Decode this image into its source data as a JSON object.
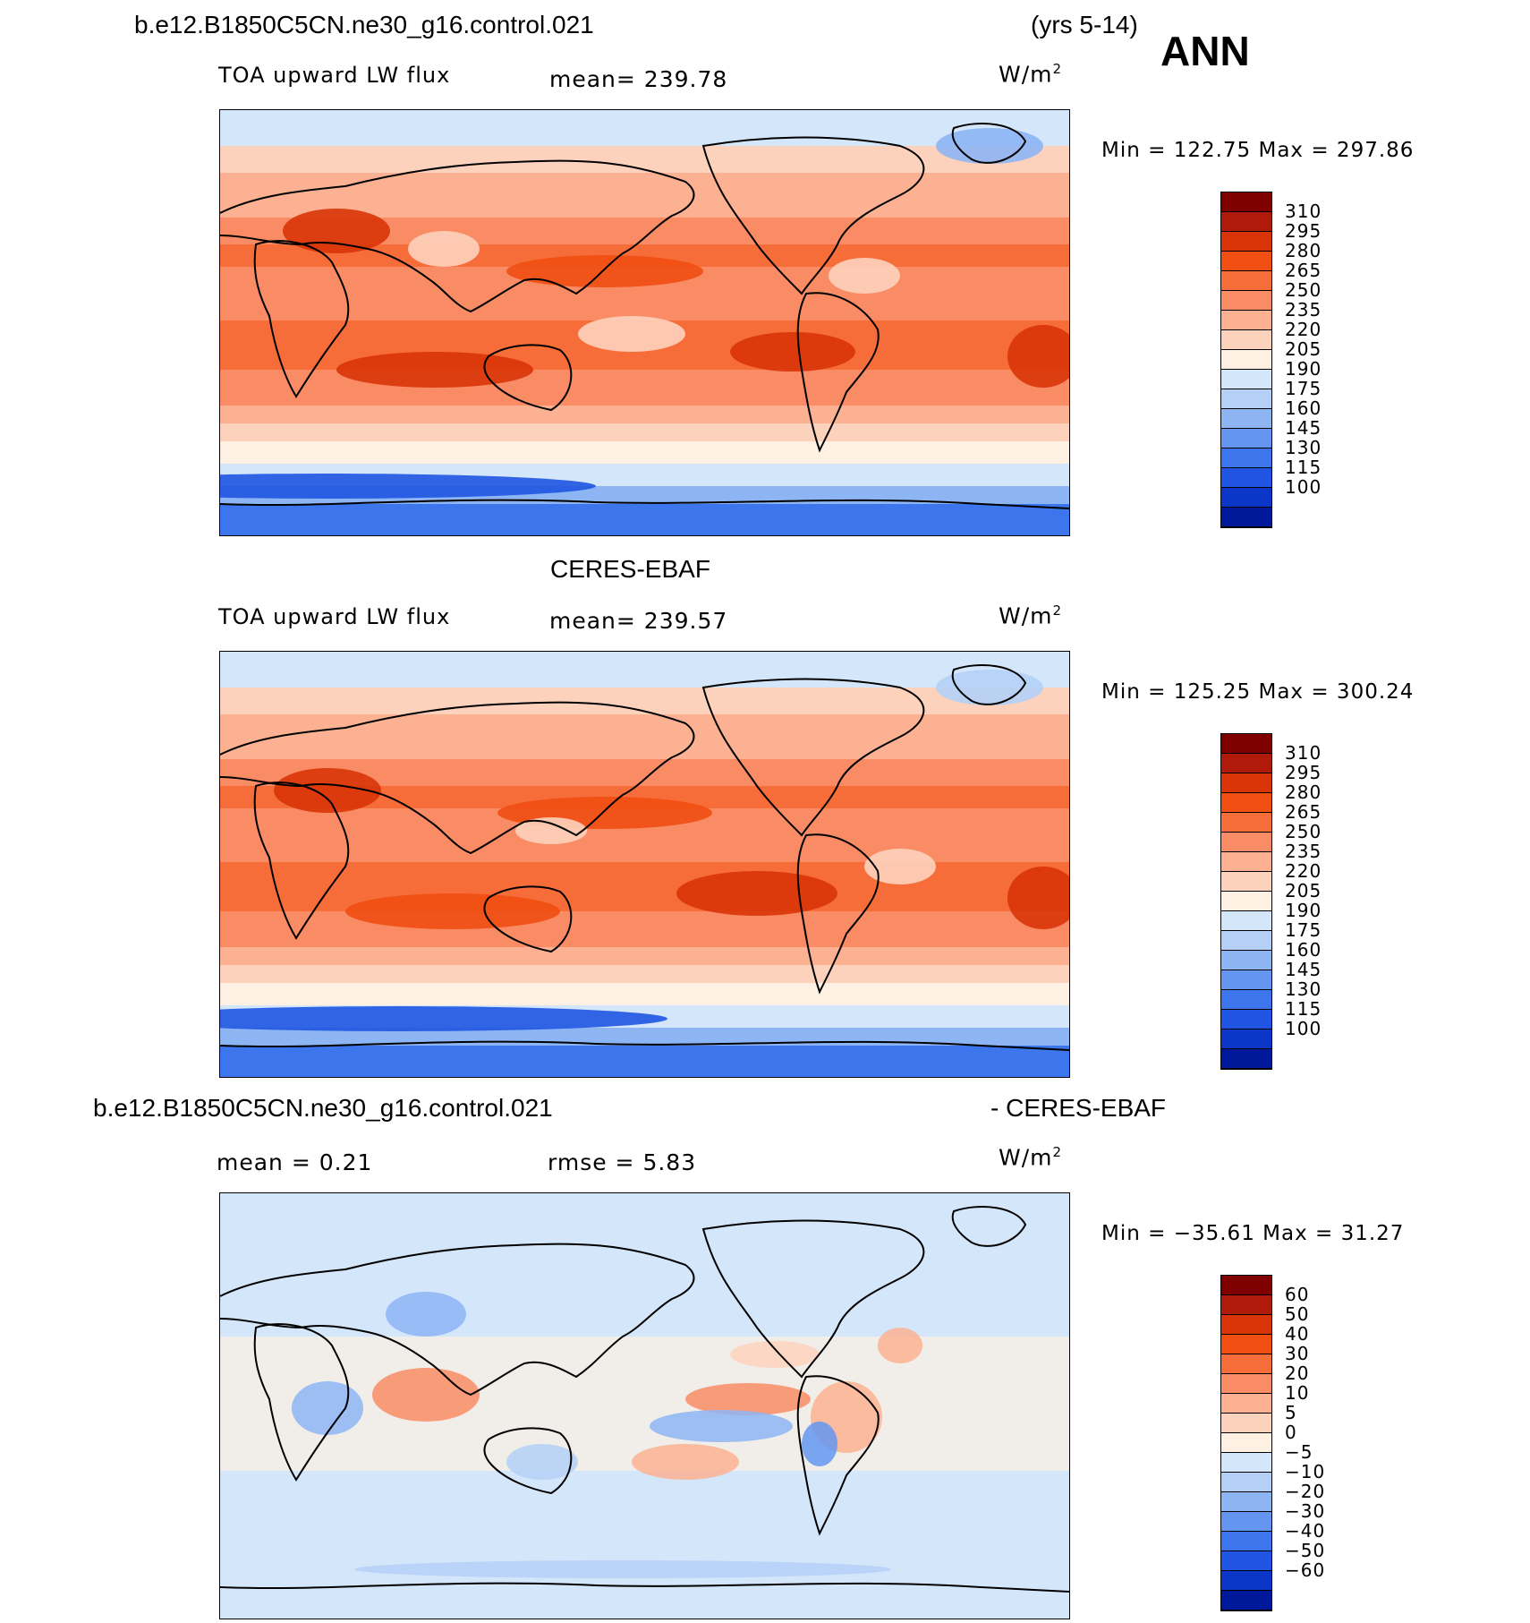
{
  "header": {
    "case_name": "b.e12.B1850C5CN.ne30_g16.control.021",
    "years": "(yrs 5-14)",
    "season": "ANN"
  },
  "panels": [
    {
      "id": "model",
      "title": "",
      "label": "TOA upward LW flux",
      "stat1": "mean=  239.78",
      "stat2": "",
      "units_base": "W/m",
      "units_exp": "2",
      "minmax": "Min  =  122.75  Max  =  297.86",
      "colorbar": {
        "labels": [
          "310",
          "295",
          "280",
          "265",
          "250",
          "235",
          "220",
          "205",
          "190",
          "175",
          "160",
          "145",
          "130",
          "115",
          "100"
        ],
        "colors": [
          "#800000",
          "#b01a0a",
          "#d83408",
          "#f04e12",
          "#f76d3a",
          "#f98c64",
          "#fbb192",
          "#fdd2bd",
          "#fef1e3",
          "#d4e6fa",
          "#b4d0f7",
          "#8db5f4",
          "#6496f0",
          "#3c75ec",
          "#1f55e2",
          "#0a37c8",
          "#00189a"
        ]
      }
    },
    {
      "id": "obs",
      "title": "CERES-EBAF",
      "label": "TOA upward LW flux",
      "stat1": "mean=  239.57",
      "stat2": "",
      "units_base": "W/m",
      "units_exp": "2",
      "minmax": "Min  =  125.25  Max  =  300.24",
      "colorbar": {
        "labels": [
          "310",
          "295",
          "280",
          "265",
          "250",
          "235",
          "220",
          "205",
          "190",
          "175",
          "160",
          "145",
          "130",
          "115",
          "100"
        ],
        "colors": [
          "#800000",
          "#b01a0a",
          "#d83408",
          "#f04e12",
          "#f76d3a",
          "#f98c64",
          "#fbb192",
          "#fdd2bd",
          "#fef1e3",
          "#d4e6fa",
          "#b4d0f7",
          "#8db5f4",
          "#6496f0",
          "#3c75ec",
          "#1f55e2",
          "#0a37c8",
          "#00189a"
        ]
      }
    },
    {
      "id": "diff",
      "title_left": "b.e12.B1850C5CN.ne30_g16.control.021",
      "title_right": "- CERES-EBAF",
      "label": "mean  =     0.21",
      "stat1": "rmse  =     5.83",
      "units_base": "W/m",
      "units_exp": "2",
      "minmax": "Min  =  −35.61  Max  =    31.27",
      "colorbar": {
        "labels": [
          "60",
          "50",
          "40",
          "30",
          "20",
          "10",
          "5",
          "0",
          "−5",
          "−10",
          "−20",
          "−30",
          "−40",
          "−50",
          "−60"
        ],
        "colors": [
          "#800000",
          "#b01a0a",
          "#d83408",
          "#f04e12",
          "#f76d3a",
          "#f98c64",
          "#fbb192",
          "#fdd2bd",
          "#fef1e3",
          "#d4e6fa",
          "#b4d0f7",
          "#8db5f4",
          "#6496f0",
          "#3c75ec",
          "#1f55e2",
          "#0a37c8",
          "#00189a"
        ]
      }
    }
  ]
}
